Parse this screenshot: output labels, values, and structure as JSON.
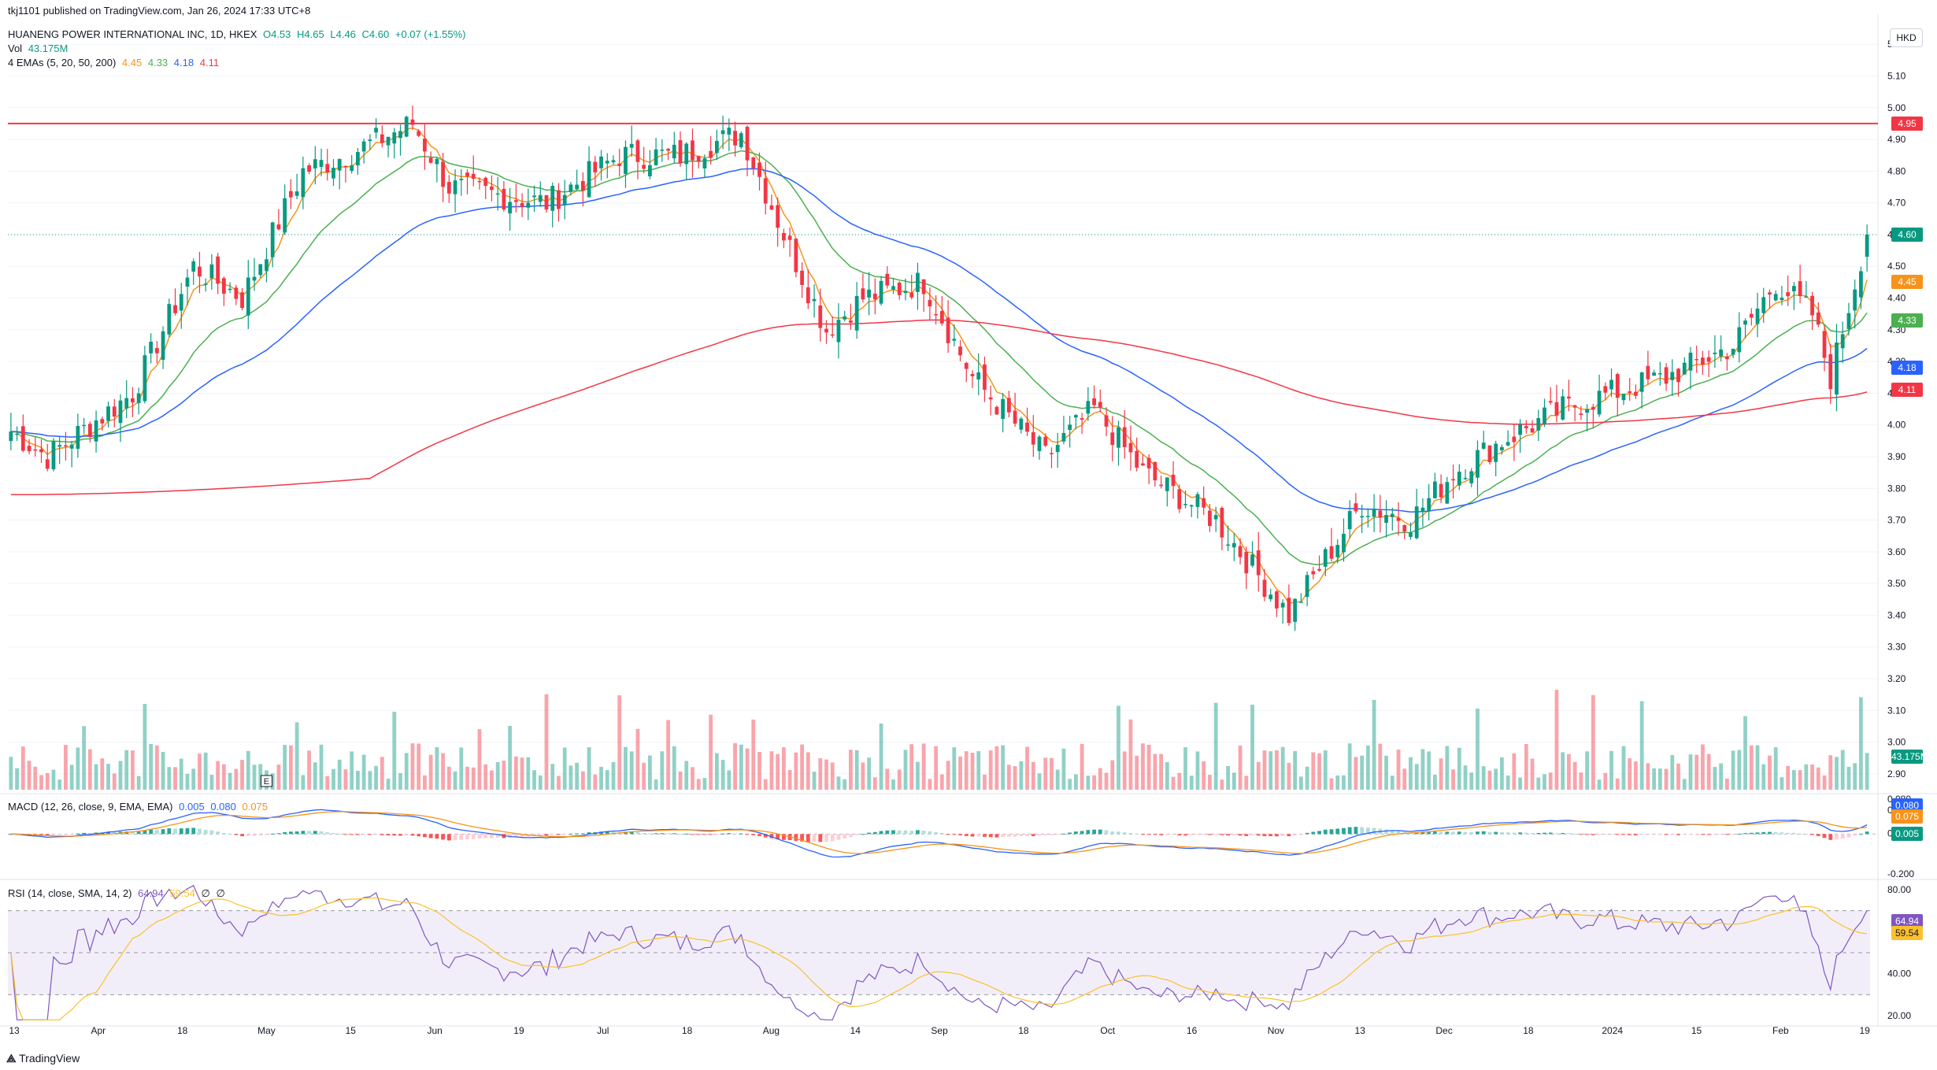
{
  "header": {
    "publisher": "tkj1101 published on TradingView.com, Jan 26, 2024 17:33 UTC+8",
    "symbol": "HUANENG POWER INTERNATIONAL INC, 1D, HKEX",
    "ohlc": {
      "o": "O4.53",
      "h": "H4.65",
      "l": "L4.46",
      "c": "C4.60",
      "chg": "+0.07 (+1.55%)"
    },
    "vol_label": "Vol",
    "vol_value": "43.175M",
    "ema_label": "4 EMAs (5, 20, 50, 200)",
    "ema_values": [
      "4.45",
      "4.33",
      "4.18",
      "4.11"
    ],
    "macd_label": "MACD (12, 26, close, 9, EMA, EMA)",
    "macd_values": [
      "0.005",
      "0.080",
      "0.075"
    ],
    "rsi_label": "RSI (14, close, SMA, 14, 2)",
    "rsi_values": [
      "64.94",
      "59.54",
      "∅",
      "∅"
    ]
  },
  "currency": "HKD",
  "footer_logo": "TradingView",
  "colors": {
    "up": "#089981",
    "down": "#f23645",
    "ema5": "#f7931a",
    "ema20": "#4caf50",
    "ema50": "#2962ff",
    "ema200": "#f23645",
    "macd": "#2962ff",
    "signal": "#f7931a",
    "rsi": "#7e57c2",
    "rsima": "#fbc02d",
    "hline": "#f23645"
  },
  "chart_data": {
    "type": "candlestick",
    "price_axis": {
      "ticks": [
        "5.20",
        "5.10",
        "5.00",
        "4.90",
        "4.80",
        "4.70",
        "4.60",
        "4.50",
        "4.40",
        "4.30",
        "4.20",
        "4.10",
        "4.00",
        "3.90",
        "3.80",
        "3.70",
        "3.60",
        "3.50",
        "3.40",
        "3.30",
        "3.20",
        "3.10",
        "3.00",
        "2.90"
      ],
      "range": [
        2.85,
        5.27
      ]
    },
    "price_labels": [
      {
        "value": "4.95",
        "price": 4.95,
        "color": "#f23645"
      },
      {
        "value": "4.60",
        "price": 4.6,
        "color": "#089981"
      },
      {
        "value": "4.45",
        "price": 4.45,
        "color": "#f7931a"
      },
      {
        "value": "4.33",
        "price": 4.33,
        "color": "#4caf50"
      },
      {
        "value": "4.18",
        "price": 4.18,
        "color": "#2962ff"
      },
      {
        "value": "4.11",
        "price": 4.11,
        "color": "#f23645"
      },
      {
        "value": "43.175M",
        "price": 2.955,
        "color": "#089981"
      }
    ],
    "horizontal_line": 4.95,
    "x_axis_labels": [
      "13",
      "Apr",
      "18",
      "May",
      "15",
      "Jun",
      "19",
      "Jul",
      "18",
      "Aug",
      "14",
      "Sep",
      "18",
      "Oct",
      "16",
      "Nov",
      "13",
      "Dec",
      "18",
      "2024",
      "15",
      "Feb",
      "19"
    ],
    "earnings_markers": [
      "E",
      "E"
    ],
    "close_anchors": [
      [
        0,
        3.98
      ],
      [
        6,
        3.9
      ],
      [
        20,
        4.1
      ],
      [
        30,
        4.5
      ],
      [
        38,
        4.4
      ],
      [
        48,
        4.8
      ],
      [
        55,
        4.85
      ],
      [
        66,
        4.95
      ],
      [
        72,
        4.75
      ],
      [
        88,
        4.7
      ],
      [
        100,
        4.85
      ],
      [
        110,
        4.85
      ],
      [
        120,
        4.92
      ],
      [
        127,
        4.6
      ],
      [
        134,
        4.3
      ],
      [
        140,
        4.4
      ],
      [
        150,
        4.45
      ],
      [
        158,
        4.15
      ],
      [
        170,
        3.9
      ],
      [
        178,
        4.05
      ],
      [
        186,
        3.85
      ],
      [
        198,
        3.7
      ],
      [
        210,
        3.4
      ],
      [
        215,
        3.55
      ],
      [
        222,
        3.75
      ],
      [
        230,
        3.7
      ],
      [
        237,
        3.85
      ],
      [
        245,
        3.95
      ],
      [
        255,
        4.05
      ],
      [
        263,
        4.1
      ],
      [
        272,
        4.15
      ],
      [
        283,
        4.25
      ],
      [
        290,
        4.45
      ],
      [
        296,
        4.35
      ],
      [
        299,
        4.15
      ],
      [
        305,
        4.6
      ]
    ],
    "macd": {
      "axis_ticks": [
        "0.080",
        "0.075",
        "0.005",
        "-0.200"
      ],
      "range": [
        -0.25,
        0.22
      ]
    },
    "rsi": {
      "axis_ticks": [
        "80.00",
        "40.00",
        "20.00"
      ],
      "bands": [
        70,
        50,
        30
      ],
      "range": [
        17,
        83
      ]
    }
  }
}
